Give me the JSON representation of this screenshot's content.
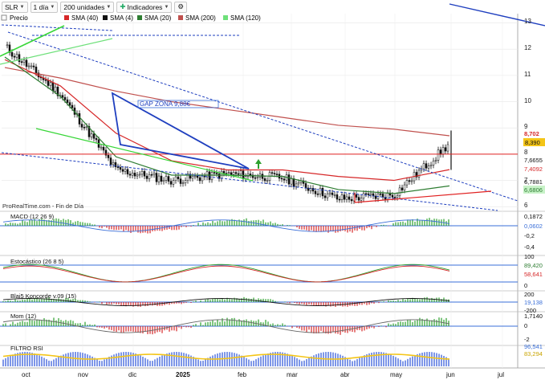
{
  "toolbar": {
    "symbol": "SLR",
    "period": "1 día",
    "units": "200 unidades",
    "indicators": "Indicadores"
  },
  "colors": {
    "price": "#111111",
    "sma40": "#d62728",
    "sma4": "#111111",
    "sma20": "#2e7d32",
    "sma200": "#c0504d",
    "sma120": "#6ee07a",
    "trend_blue": "#1f3fbf",
    "trend_red": "#e02020",
    "trend_green": "#37d637",
    "grid": "#e6e6e6",
    "bull": "#2ca02c",
    "bear": "#d62728"
  },
  "main": {
    "legend": [
      "Precio",
      "SMA (40)",
      "SMA (4)",
      "SMA (20)",
      "SMA (200)",
      "SMA (120)"
    ],
    "annotation": "GAP ZONA 9,88€",
    "source": "ProRealTime.com - Fin de Día",
    "y_ticks": [
      "13",
      "12",
      "11",
      "10",
      "9",
      "8",
      "7",
      "6"
    ],
    "price_labels": {
      "p8702": "8,702",
      "p8390": "8,390",
      "p7665": "7,6655",
      "p7409": "7,4092",
      "p6788": "6,7881",
      "p6680": "6,6806"
    }
  },
  "panels": {
    "macd": {
      "label": "MACD (12 26 9)",
      "ticks": [
        "0,1872",
        "0,0602",
        "-0,2",
        "-0,4"
      ]
    },
    "stoch": {
      "label": "Estocástico (26 8 5)",
      "ticks": [
        "100",
        "89,420",
        "58,641",
        "0"
      ]
    },
    "blai5": {
      "label": "Blai5 Koncorde v.09 (15)",
      "ticks": [
        "200",
        "19,138",
        "-200"
      ]
    },
    "mom": {
      "label": "Mom (12)",
      "ticks": [
        "1,7140",
        "0",
        "-2"
      ]
    },
    "rsi": {
      "label": "FILTRO RSI",
      "ticks": [
        "96,541",
        "83,294"
      ]
    }
  },
  "x_labels": [
    "oct",
    "nov",
    "dic",
    "2025",
    "feb",
    "mar",
    "abr",
    "may",
    "jun",
    "jul"
  ],
  "chart_data": {
    "type": "line",
    "title": "SLR",
    "x": [
      "oct",
      "nov",
      "dic",
      "2025",
      "feb",
      "mar",
      "abr",
      "may",
      "jun"
    ],
    "y_axis_ticks": [
      13,
      12,
      11,
      10,
      9,
      8,
      7,
      6
    ],
    "ylim": [
      5.7,
      13.2
    ],
    "series": [
      {
        "name": "Precio",
        "values": [
          12.1,
          10.3,
          7.4,
          7.0,
          7.25,
          7.1,
          6.3,
          6.45,
          8.39
        ]
      },
      {
        "name": "SMA (200)",
        "values": [
          11.3,
          10.9,
          10.4,
          10.0,
          9.7,
          9.4,
          9.1,
          8.95,
          8.7
        ]
      },
      {
        "name": "SMA (40)",
        "values": [
          11.6,
          10.6,
          8.8,
          7.75,
          7.4,
          7.4,
          7.15,
          7.0,
          7.41
        ]
      },
      {
        "name": "SMA (20)",
        "values": [
          11.7,
          10.2,
          7.9,
          7.2,
          7.2,
          7.15,
          6.65,
          6.5,
          6.79
        ]
      }
    ],
    "horizontal_line": 8.0,
    "annotation": "GAP ZONA 9,88€"
  }
}
